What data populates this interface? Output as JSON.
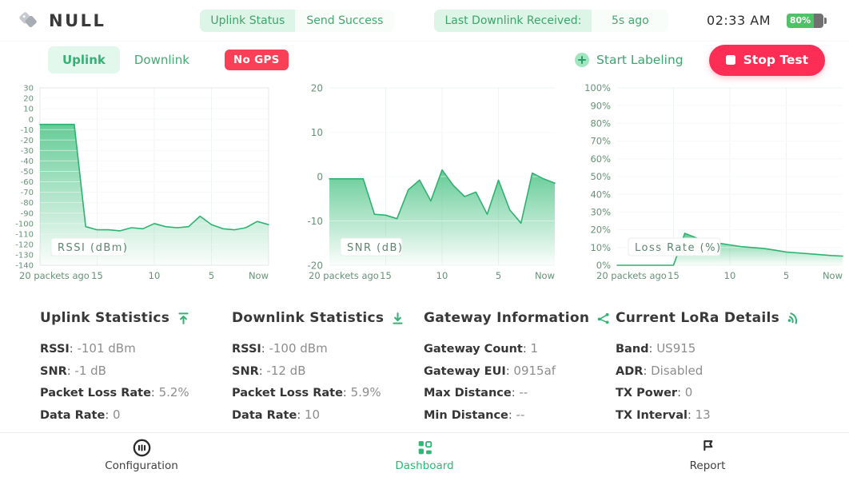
{
  "header": {
    "app_title": "NULL",
    "status": {
      "uplink_label": "Uplink Status",
      "uplink_value": "Send Success",
      "downlink_label": "Last Downlink Received:",
      "downlink_value": "5s ago"
    },
    "time": "02:33 AM",
    "battery": {
      "percent": "80%"
    }
  },
  "toolbar": {
    "tabs": [
      {
        "label": "Uplink",
        "active": true
      },
      {
        "label": "Downlink",
        "active": false
      }
    ],
    "gps_badge": "No GPS",
    "start_labeling_label": "Start Labeling",
    "stop_test_label": "Stop Test"
  },
  "chart_data": [
    {
      "type": "area",
      "title": "RSSI (dBm)",
      "x_ticks": [
        "20 packets ago",
        "15",
        "10",
        "5",
        "Now"
      ],
      "ylim": [
        -140,
        30
      ],
      "y_tick_step": 10,
      "y_tick_suffix": "",
      "values": [
        -5,
        -5,
        -5,
        -5,
        -103,
        -106,
        -106,
        -107,
        -104,
        -105,
        -100,
        -103,
        -104,
        -103,
        -93,
        -101,
        -105,
        -106,
        -104,
        -98,
        -101
      ]
    },
    {
      "type": "area",
      "title": "SNR (dB)",
      "x_ticks": [
        "20 packets ago",
        "15",
        "10",
        "5",
        "Now"
      ],
      "ylim": [
        -20,
        20
      ],
      "y_tick_step": 10,
      "y_tick_suffix": "",
      "values": [
        -0.5,
        -0.5,
        -0.5,
        -0.5,
        -8.5,
        -8.7,
        -9.5,
        -3,
        -0.8,
        -5.5,
        1.5,
        -2,
        -4.5,
        -3.5,
        -8.5,
        -0.8,
        -7.5,
        -10.5,
        0.8,
        -0.5,
        -1.5
      ]
    },
    {
      "type": "area",
      "title": "Loss Rate (%)",
      "x_ticks": [
        "20 packets ago",
        "15",
        "10",
        "5",
        "Now"
      ],
      "ylim": [
        0,
        100
      ],
      "y_tick_step": 10,
      "y_tick_suffix": "%",
      "values": [
        0,
        0,
        0,
        0,
        0,
        0,
        18,
        15.5,
        13.5,
        12.5,
        11.5,
        10.5,
        10,
        9.5,
        8.5,
        7.5,
        7,
        6.5,
        6,
        5.5,
        5.2
      ]
    }
  ],
  "stats": {
    "sections": [
      {
        "title": "Uplink Statistics",
        "icon": "upload-icon",
        "rows": [
          {
            "label": "RSSI",
            "value": " -101 dBm"
          },
          {
            "label": "SNR",
            "value": " -1 dB"
          },
          {
            "label": "Packet Loss Rate",
            "value": " 5.2%"
          },
          {
            "label": "Data Rate",
            "value": " 0"
          }
        ]
      },
      {
        "title": "Downlink Statistics",
        "icon": "download-icon",
        "rows": [
          {
            "label": "RSSI",
            "value": " -100 dBm"
          },
          {
            "label": "SNR",
            "value": " -12 dB"
          },
          {
            "label": "Packet Loss Rate",
            "value": " 5.9%"
          },
          {
            "label": "Data Rate",
            "value": " 10"
          }
        ]
      },
      {
        "title": "Gateway Information",
        "icon": "gateway-nodes-icon",
        "rows": [
          {
            "label": "Gateway Count",
            "value": " 1"
          },
          {
            "label": "Gateway EUI",
            "value": " 0915af"
          },
          {
            "label": "Max Distance",
            "value": " --"
          },
          {
            "label": "Min Distance",
            "value": " --"
          }
        ]
      },
      {
        "title": "Current LoRa Details",
        "icon": "wireless-icon",
        "rows": [
          {
            "label": "Band",
            "value": " US915"
          },
          {
            "label": "ADR",
            "value": " Disabled"
          },
          {
            "label": "TX Power",
            "value": " 0"
          },
          {
            "label": "TX Interval",
            "value": " 13"
          }
        ]
      }
    ]
  },
  "bottom_nav": {
    "items": [
      {
        "label": "Configuration",
        "icon": "sliders-circle-icon",
        "active": false
      },
      {
        "label": "Dashboard",
        "icon": "grid-icon",
        "active": true
      },
      {
        "label": "Report",
        "icon": "flag-icon",
        "active": false
      }
    ]
  },
  "colors": {
    "accent_green": "#35b176",
    "light_green_bg": "#dcf5e7",
    "chart_line": "#2fb270",
    "chart_fill": "#3fbf7d",
    "axis_text": "#689178",
    "red": "#fc2e55",
    "badge_red": "#fa4056",
    "battery_green": "#4fc268"
  }
}
